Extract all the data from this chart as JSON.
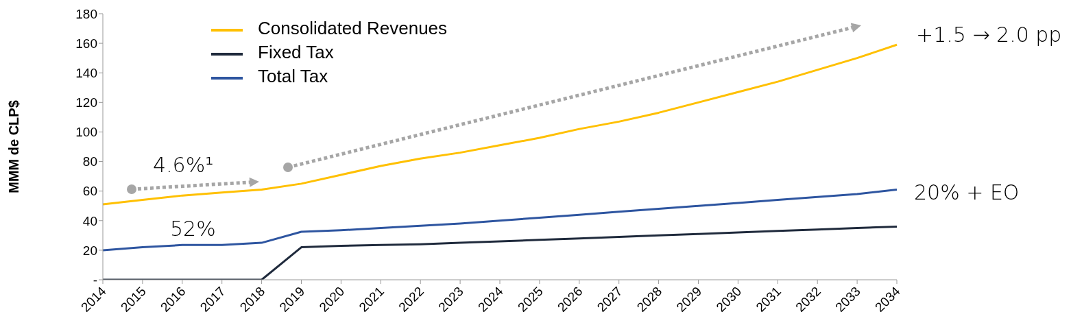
{
  "chart_data": {
    "type": "line",
    "ylabel": "MMM de CLP$",
    "categories": [
      "2014",
      "2015",
      "2016",
      "2017",
      "2018",
      "2019",
      "2020",
      "2021",
      "2022",
      "2023",
      "2024",
      "2025",
      "2026",
      "2027",
      "2028",
      "2029",
      "2030",
      "2031",
      "2032",
      "2033",
      "2034"
    ],
    "series": [
      {
        "name": "Consolidated Revenues",
        "color": "#ffc000",
        "values": [
          51,
          54,
          57,
          59,
          61,
          65,
          71,
          77,
          82,
          86,
          91,
          96,
          102,
          107,
          113,
          120,
          127,
          134,
          142,
          150,
          159
        ]
      },
      {
        "name": "Fixed Tax",
        "color": "#1f2a3c",
        "values": [
          0,
          0,
          0,
          0,
          0,
          22,
          23,
          23.5,
          24,
          25,
          26,
          27,
          28,
          29,
          30,
          31,
          32,
          33,
          34,
          35,
          36
        ]
      },
      {
        "name": "Total Tax",
        "color": "#2e55a0",
        "values": [
          20,
          22,
          23.5,
          23.5,
          25,
          32.5,
          33.5,
          35,
          36.5,
          38,
          40,
          42,
          44,
          46,
          48,
          50,
          52,
          54,
          56,
          58,
          61
        ]
      }
    ],
    "ylim": [
      0,
      180
    ],
    "yticks": [
      {
        "value": 0,
        "label": "-"
      },
      20,
      40,
      60,
      80,
      100,
      120,
      140,
      160,
      180
    ],
    "grid": false,
    "legend": "top left",
    "marker": "none",
    "line_style": "solid",
    "annotations": [
      "4.6%¹",
      "52%",
      "+1.5 → 2.0 pp",
      "20% + EO"
    ]
  }
}
